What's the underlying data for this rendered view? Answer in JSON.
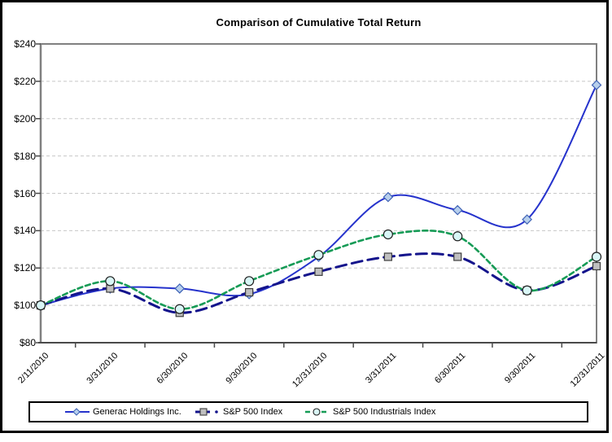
{
  "chart_data": {
    "type": "line",
    "title": "Comparison of Cumulative Total Return",
    "categories": [
      "2/11/2010",
      "3/31/2010",
      "6/30/2010",
      "9/30/2010",
      "12/31/2010",
      "3/31/2011",
      "6/30/2011",
      "9/30/2011",
      "12/31/2011"
    ],
    "series": [
      {
        "name": "Generac Holdings Inc.",
        "values": [
          100,
          109,
          109,
          106,
          126,
          158,
          151,
          146,
          218
        ],
        "color": "#2633cc",
        "line_style": "solid",
        "marker": "diamond",
        "marker_fill": "#b7cfec",
        "marker_stroke": "#3f63b5"
      },
      {
        "name": "S&P 500 Index",
        "values": [
          100,
          109,
          96,
          107,
          118,
          126,
          126,
          108,
          121
        ],
        "color": "#14148c",
        "line_style": "long-dash",
        "marker": "square",
        "marker_fill": "#bfbfbf",
        "marker_stroke": "#3d3d3d"
      },
      {
        "name": "S&P 500 Industrials Index",
        "values": [
          100,
          113,
          98,
          113,
          127,
          138,
          137,
          108,
          126
        ],
        "color": "#169b56",
        "line_style": "dash",
        "marker": "circle",
        "marker_fill": "#d9f6f6",
        "marker_stroke": "#1f1f1f"
      }
    ],
    "ylim": [
      80,
      240
    ],
    "ytick_step": 20,
    "y_axis_labels": [
      "$240",
      "$220",
      "$200",
      "$180",
      "$160",
      "$140",
      "$120",
      "$100",
      "$80"
    ],
    "ytick_prefix": "$",
    "grid": "horizontal-dashed",
    "smoothed_lines": true,
    "legend_position": "bottom",
    "colors": {
      "gridline": "#c8c8c8",
      "plot_border": "#808080",
      "axis_line": "#4a4a4a",
      "text": "#000000",
      "background": "#ffffff"
    }
  }
}
